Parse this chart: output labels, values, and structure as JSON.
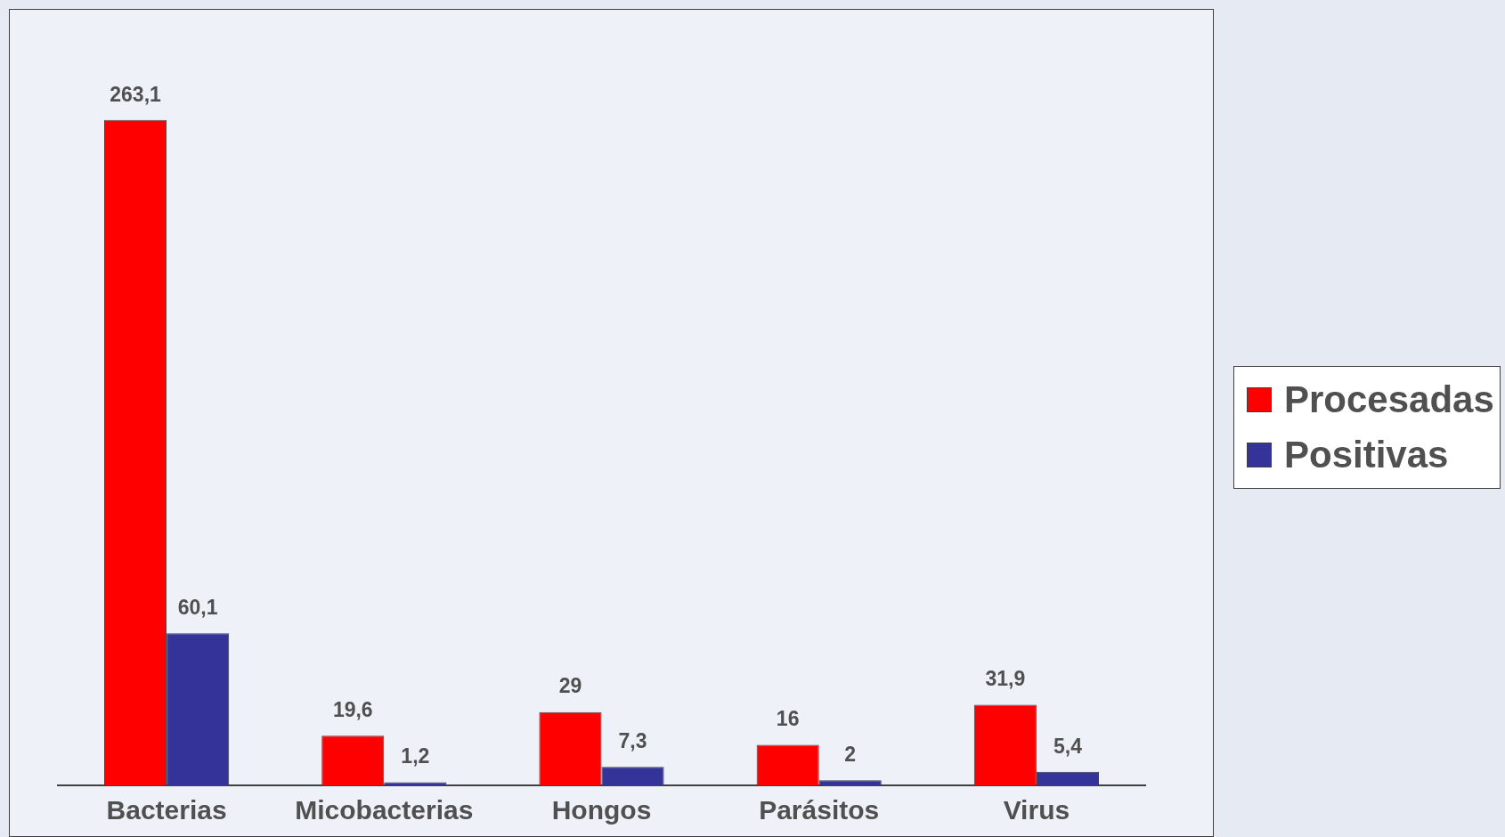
{
  "chart_data": {
    "type": "bar",
    "categories": [
      "Bacterias",
      "Micobacterias",
      "Hongos",
      "Parásitos",
      "Virus"
    ],
    "series": [
      {
        "name": "Procesadas",
        "color": "#ff0000",
        "values": [
          263.1,
          19.6,
          29,
          16,
          31.9
        ],
        "value_labels": [
          "263,1",
          "19,6",
          "29",
          "16",
          "31,9"
        ]
      },
      {
        "name": "Positivas",
        "color": "#333399",
        "values": [
          60.1,
          1.2,
          7.3,
          2,
          5.4
        ],
        "value_labels": [
          "60,1",
          "1,2",
          "7,3",
          "2",
          "5,4"
        ]
      }
    ],
    "legend": "right",
    "grid": false
  }
}
